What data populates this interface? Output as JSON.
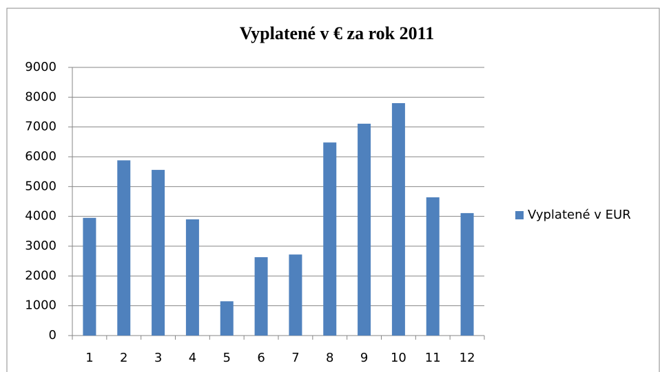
{
  "chart_data": {
    "type": "bar",
    "title": "Vyplatené v € za rok 2011",
    "categories": [
      "1",
      "2",
      "3",
      "4",
      "5",
      "6",
      "7",
      "8",
      "9",
      "10",
      "11",
      "12"
    ],
    "series": [
      {
        "name": "Vyplatené v EUR",
        "color": "#4f81bd",
        "values": [
          3950,
          5880,
          5560,
          3900,
          1150,
          2630,
          2720,
          6480,
          7110,
          7800,
          4640,
          4110
        ]
      }
    ],
    "ylim": [
      0,
      9000
    ],
    "yticks": [
      0,
      1000,
      2000,
      3000,
      4000,
      5000,
      6000,
      7000,
      8000,
      9000
    ],
    "grid": true,
    "legend": "right"
  }
}
